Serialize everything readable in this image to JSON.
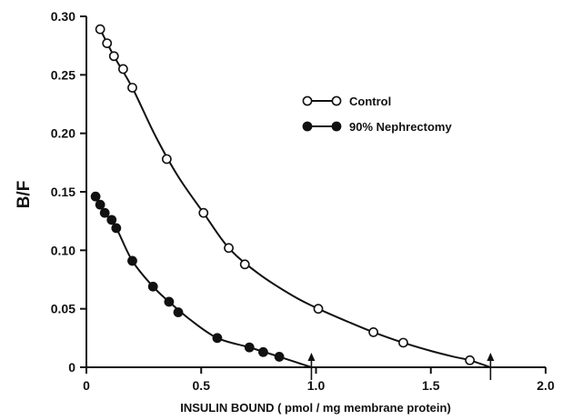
{
  "chart_data": {
    "type": "scatter",
    "xlabel": "INSULIN BOUND ( pmol / mg membrane protein)",
    "ylabel": "B/F",
    "xlim": [
      0,
      2.0
    ],
    "ylim": [
      0,
      0.3
    ],
    "x_ticks": [
      "0",
      "0.5",
      "1.0",
      "1.5",
      "2.0"
    ],
    "x_tick_values": [
      0,
      0.5,
      1.0,
      1.5,
      2.0
    ],
    "y_ticks": [
      "0",
      "0.05",
      "0.10",
      "0.15",
      "0.20",
      "0.25",
      "0.30"
    ],
    "y_tick_values": [
      0,
      0.05,
      0.1,
      0.15,
      0.2,
      0.25,
      0.3
    ],
    "grid": false,
    "legend_position": "top-right",
    "series": [
      {
        "name": "Control",
        "marker": "open-circle",
        "points": [
          [
            0.06,
            0.289
          ],
          [
            0.09,
            0.277
          ],
          [
            0.12,
            0.266
          ],
          [
            0.16,
            0.255
          ],
          [
            0.2,
            0.239
          ],
          [
            0.35,
            0.178
          ],
          [
            0.51,
            0.132
          ],
          [
            0.62,
            0.102
          ],
          [
            0.69,
            0.088
          ],
          [
            1.01,
            0.05
          ],
          [
            1.25,
            0.03
          ],
          [
            1.38,
            0.021
          ],
          [
            1.67,
            0.006
          ]
        ],
        "curve": [
          [
            0.06,
            0.289
          ],
          [
            0.12,
            0.266
          ],
          [
            0.2,
            0.239
          ],
          [
            0.3,
            0.198
          ],
          [
            0.4,
            0.163
          ],
          [
            0.51,
            0.132
          ],
          [
            0.62,
            0.102
          ],
          [
            0.75,
            0.08
          ],
          [
            0.9,
            0.061
          ],
          [
            1.01,
            0.05
          ],
          [
            1.15,
            0.038
          ],
          [
            1.25,
            0.03
          ],
          [
            1.38,
            0.021
          ],
          [
            1.5,
            0.014
          ],
          [
            1.6,
            0.009
          ],
          [
            1.67,
            0.006
          ],
          [
            1.76,
            0.0
          ]
        ]
      },
      {
        "name": "90% Nephrectomy",
        "marker": "filled-circle",
        "points": [
          [
            0.04,
            0.146
          ],
          [
            0.06,
            0.139
          ],
          [
            0.08,
            0.132
          ],
          [
            0.11,
            0.126
          ],
          [
            0.13,
            0.119
          ],
          [
            0.2,
            0.091
          ],
          [
            0.29,
            0.069
          ],
          [
            0.36,
            0.056
          ],
          [
            0.4,
            0.047
          ],
          [
            0.57,
            0.025
          ],
          [
            0.71,
            0.017
          ],
          [
            0.77,
            0.013
          ],
          [
            0.84,
            0.009
          ]
        ],
        "curve": [
          [
            0.04,
            0.146
          ],
          [
            0.08,
            0.132
          ],
          [
            0.13,
            0.119
          ],
          [
            0.2,
            0.091
          ],
          [
            0.29,
            0.069
          ],
          [
            0.36,
            0.056
          ],
          [
            0.45,
            0.041
          ],
          [
            0.57,
            0.025
          ],
          [
            0.71,
            0.017
          ],
          [
            0.84,
            0.009
          ],
          [
            0.98,
            0.0
          ]
        ]
      }
    ],
    "annotations": [
      {
        "type": "arrow",
        "x": 0.98,
        "direction": "up"
      },
      {
        "type": "arrow",
        "x": 1.76,
        "direction": "up"
      }
    ]
  }
}
